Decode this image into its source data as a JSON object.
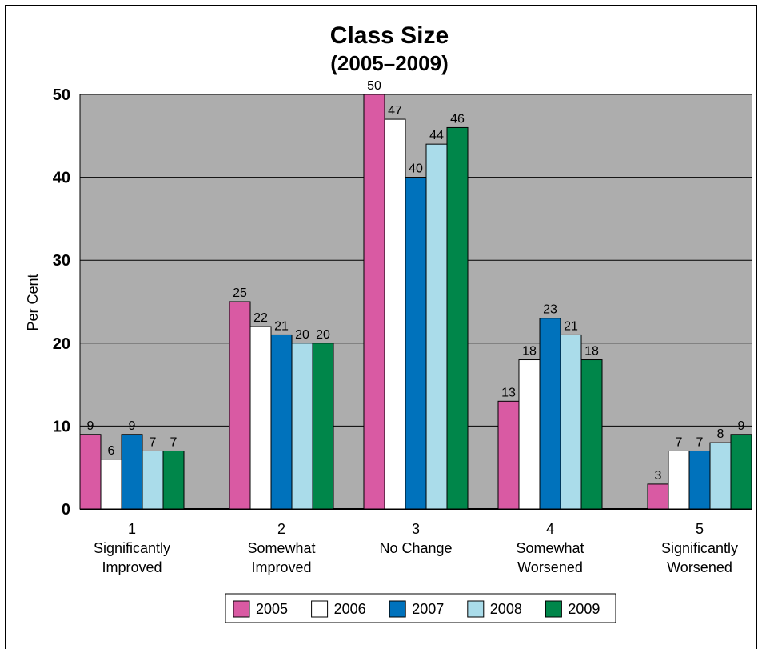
{
  "chart_data": {
    "type": "bar",
    "title": "Class Size",
    "subtitle": "(2005–2009)",
    "xlabel": "",
    "ylabel": "Per Cent",
    "ylim": [
      0,
      50
    ],
    "yticks": [
      0,
      10,
      20,
      30,
      40,
      50
    ],
    "grid": true,
    "legend_position": "bottom",
    "categories": [
      [
        "1",
        "Significantly",
        "Improved"
      ],
      [
        "2",
        "Somewhat",
        "Improved"
      ],
      [
        "3",
        "No Change"
      ],
      [
        "4",
        "Somewhat",
        "Worsened"
      ],
      [
        "5",
        "Significantly",
        "Worsened"
      ]
    ],
    "series": [
      {
        "name": "2005",
        "color": "#d95aa3",
        "values": [
          9,
          25,
          50,
          13,
          3
        ]
      },
      {
        "name": "2006",
        "color": "#ffffff",
        "values": [
          6,
          22,
          47,
          18,
          7
        ]
      },
      {
        "name": "2007",
        "color": "#0072bc",
        "values": [
          9,
          21,
          40,
          23,
          7
        ]
      },
      {
        "name": "2008",
        "color": "#aadcea",
        "values": [
          7,
          20,
          44,
          21,
          8
        ]
      },
      {
        "name": "2009",
        "color": "#00864a",
        "values": [
          7,
          20,
          46,
          18,
          9
        ]
      }
    ],
    "plot_background": "#adadad"
  }
}
